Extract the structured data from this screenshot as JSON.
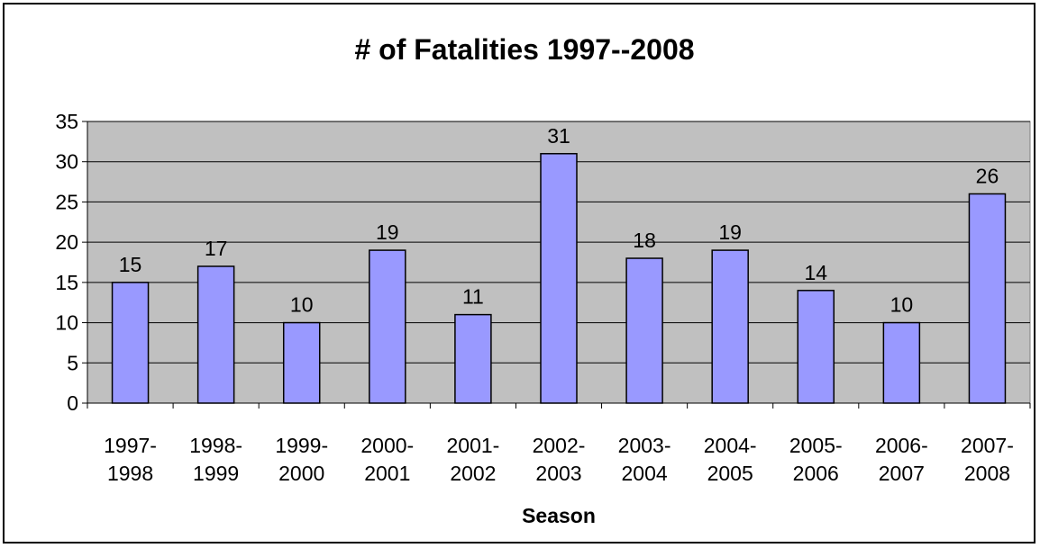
{
  "chart_data": {
    "type": "bar",
    "title": "# of Fatalities 1997--2008",
    "xlabel": "Season",
    "ylabel": "",
    "categories": [
      [
        "1997-",
        "1998"
      ],
      [
        "1998-",
        "1999"
      ],
      [
        "1999-",
        "2000"
      ],
      [
        "2000-",
        "2001"
      ],
      [
        "2001-",
        "2002"
      ],
      [
        "2002-",
        "2003"
      ],
      [
        "2003-",
        "2004"
      ],
      [
        "2004-",
        "2005"
      ],
      [
        "2005-",
        "2006"
      ],
      [
        "2006-",
        "2007"
      ],
      [
        "2007-",
        "2008"
      ]
    ],
    "values": [
      15,
      17,
      10,
      19,
      11,
      31,
      18,
      19,
      14,
      10,
      26
    ],
    "ylim": [
      0,
      35
    ],
    "yticks": [
      0,
      5,
      10,
      15,
      20,
      25,
      30,
      35
    ],
    "grid": true,
    "legend": "none",
    "colors": {
      "plot_background": "#c0c0c0",
      "bar_fill": "#9999ff",
      "bar_stroke": "#000000",
      "gridline": "#000000"
    }
  }
}
